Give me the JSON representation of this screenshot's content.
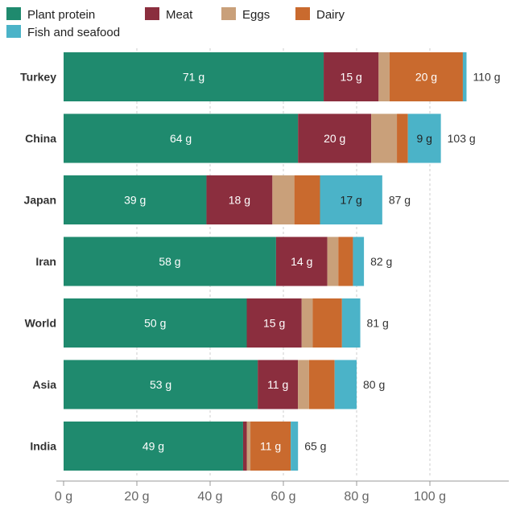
{
  "chart_data": {
    "type": "bar",
    "orientation": "horizontal",
    "stacked": true,
    "categories": [
      "Turkey",
      "China",
      "Japan",
      "Iran",
      "World",
      "Asia",
      "India"
    ],
    "series": [
      {
        "name": "Plant protein",
        "color": "#1f8a6e",
        "values": [
          71,
          64,
          39,
          58,
          50,
          53,
          49
        ]
      },
      {
        "name": "Meat",
        "color": "#8b2e3e",
        "values": [
          15,
          20,
          18,
          14,
          15,
          11,
          1
        ]
      },
      {
        "name": "Eggs",
        "color": "#c9a07a",
        "values": [
          3,
          7,
          6,
          3,
          3,
          3,
          1
        ]
      },
      {
        "name": "Dairy",
        "color": "#c96a2e",
        "values": [
          20,
          3,
          7,
          4,
          8,
          7,
          11
        ]
      },
      {
        "name": "Fish and seafood",
        "color": "#4bb3c8",
        "values": [
          1,
          9,
          17,
          3,
          5,
          6,
          2
        ]
      }
    ],
    "segment_labels": [
      [
        "71 g",
        "15 g",
        "",
        "20 g",
        ""
      ],
      [
        "64 g",
        "20 g",
        "",
        "",
        "9 g"
      ],
      [
        "39 g",
        "18 g",
        "",
        "",
        "17 g"
      ],
      [
        "58 g",
        "14 g",
        "",
        "",
        ""
      ],
      [
        "50 g",
        "15 g",
        "",
        "",
        ""
      ],
      [
        "53 g",
        "11 g",
        "",
        "",
        ""
      ],
      [
        "49 g",
        "",
        "",
        "11 g",
        ""
      ]
    ],
    "totals": [
      "110 g",
      "103 g",
      "87 g",
      "82 g",
      "81 g",
      "80 g",
      "65 g"
    ],
    "x_ticks": [
      {
        "value": 0,
        "label": "0 g"
      },
      {
        "value": 20,
        "label": "20 g"
      },
      {
        "value": 40,
        "label": "40 g"
      },
      {
        "value": 60,
        "label": "60 g"
      },
      {
        "value": 80,
        "label": "80 g"
      },
      {
        "value": 100,
        "label": "100 g"
      }
    ],
    "xlim": [
      0,
      120
    ],
    "grid": "vertical dashed",
    "legend_position": "top-left"
  }
}
